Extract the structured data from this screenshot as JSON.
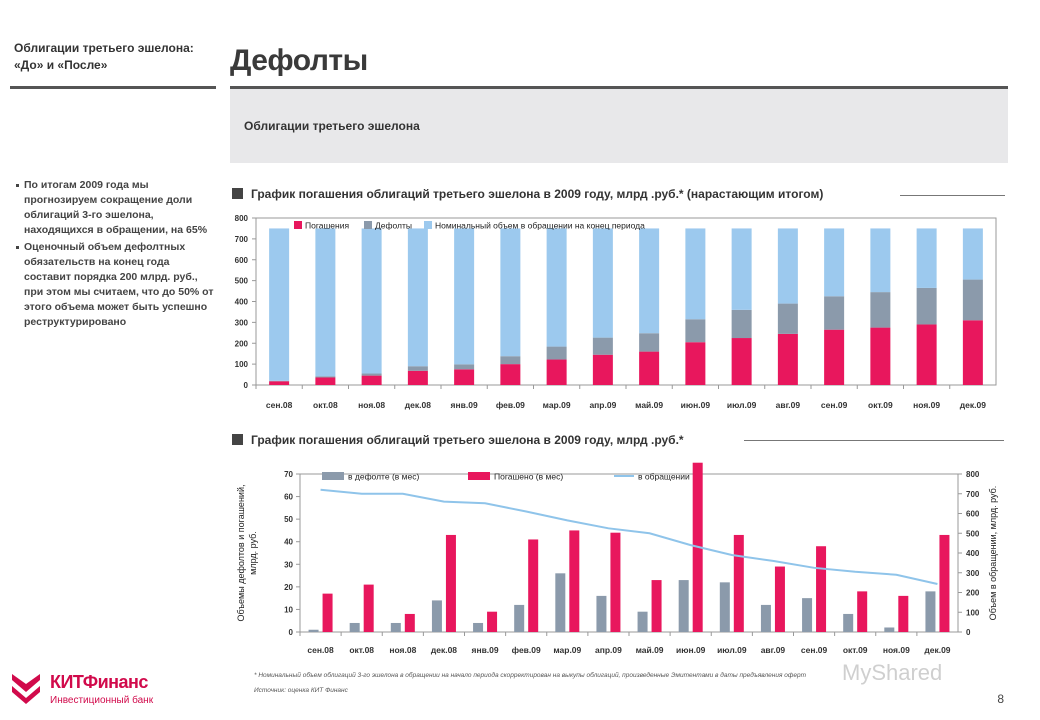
{
  "sidebar": {
    "title": "Облигации третьего эшелона: «До» и «После»",
    "bullets": [
      "По итогам 2009 года мы прогнозируем сокращение доли облигаций 3-го эшелона, находящихся в обращении, на 65%",
      "Оценочный объем дефолтных обязательств на конец года составит порядка 200 млрд. руб., при этом мы считаем, что до 50% от этого объема может быть успешно реструктурировано"
    ]
  },
  "header": {
    "title": "Дефолты",
    "band_text": "Облигации третьего эшелона"
  },
  "colors": {
    "pogasheniya": "#e8175d",
    "defolty": "#8b9aab",
    "obrashchenie": "#9cc9ee",
    "line": "#8fc4ea"
  },
  "chart1": {
    "heading": "График погашения облигаций третьего эшелона в 2009 году, млрд .руб.* (нарастающим итогом)"
  },
  "chart2": {
    "heading": "График погашения облигаций третьего эшелона в 2009 году, млрд .руб.*"
  },
  "chart_data": [
    {
      "type": "bar",
      "stacked": true,
      "categories": [
        "сен.08",
        "окт.08",
        "ноя.08",
        "дек.08",
        "янв.09",
        "фев.09",
        "мар.09",
        "апр.09",
        "май.09",
        "июн.09",
        "июл.09",
        "авг.09",
        "сен.09",
        "окт.09",
        "ноя.09",
        "дек.09"
      ],
      "ylim": [
        0,
        800
      ],
      "yticks": [
        0,
        100,
        200,
        300,
        400,
        500,
        600,
        700,
        800
      ],
      "legend": [
        "Погашения",
        "Дефолты",
        "Номинальный объем в обращении на конец периода"
      ],
      "series": [
        {
          "name": "Погашения",
          "values": [
            18,
            36,
            45,
            68,
            75,
            100,
            122,
            145,
            160,
            205,
            225,
            245,
            265,
            275,
            290,
            310
          ]
        },
        {
          "name": "Дефолты",
          "values": [
            2,
            6,
            10,
            22,
            24,
            38,
            62,
            82,
            88,
            110,
            135,
            145,
            160,
            170,
            175,
            195
          ]
        },
        {
          "name": "Номинальный объем в обращении на конец периода",
          "values": [
            730,
            708,
            695,
            660,
            651,
            612,
            566,
            523,
            502,
            435,
            390,
            360,
            325,
            305,
            285,
            245
          ]
        }
      ],
      "grid": false,
      "legend_position": "top"
    },
    {
      "type": "bar",
      "categories": [
        "сен.08",
        "окт.08",
        "ноя.08",
        "дек.08",
        "янв.09",
        "фев.09",
        "мар.09",
        "апр.09",
        "май.09",
        "июн.09",
        "июл.09",
        "авг.09",
        "сен.09",
        "окт.09",
        "ноя.09",
        "дек.09"
      ],
      "ylim": [
        0,
        70
      ],
      "yticks": [
        0,
        10,
        20,
        30,
        40,
        50,
        60,
        70
      ],
      "y2lim": [
        0,
        800
      ],
      "y2ticks": [
        0,
        100,
        200,
        300,
        400,
        500,
        600,
        700,
        800
      ],
      "ylabel": "Объемы дефолтов и погашений, млрд. руб.",
      "y2label": "Объем в обращении, млрд. руб.",
      "series": [
        {
          "name": "в дефолте (в мес)",
          "values": [
            1,
            4,
            4,
            14,
            4,
            12,
            26,
            16,
            9,
            23,
            22,
            12,
            15,
            8,
            2,
            18
          ]
        },
        {
          "name": "Погашено (в мес)",
          "values": [
            17,
            21,
            8,
            43,
            9,
            41,
            45,
            44,
            23,
            75,
            43,
            29,
            38,
            18,
            16,
            43
          ]
        },
        {
          "name": "в обращении",
          "axis": "right",
          "type": "line",
          "values": [
            720,
            700,
            700,
            660,
            652,
            610,
            565,
            525,
            500,
            440,
            390,
            360,
            325,
            305,
            290,
            243
          ]
        }
      ],
      "grid": false,
      "legend_position": "top"
    }
  ],
  "footnote": "* Номинальный объем облигаций 3-го эшелона в обращении на начало периода скорректирован на выкупы облигаций, произведенные Эмитентами в даты предъявления оферт",
  "source": "Источник: оценка КИТ Финанс",
  "page_number": "8",
  "logo": {
    "name": "КИТФинанс",
    "subtitle": "Инвестиционный банк"
  },
  "watermark": "MyShared"
}
